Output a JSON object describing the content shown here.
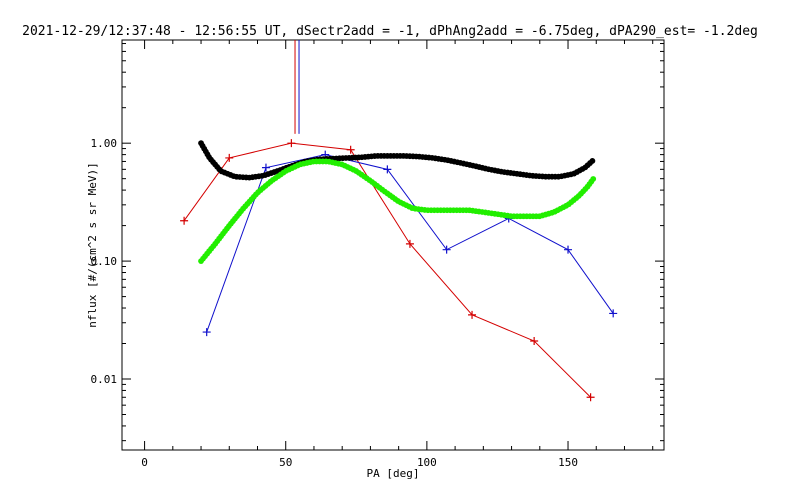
{
  "chart_data": {
    "type": "line",
    "title": "2021-12-29/12:37:48 - 12:56:55 UT, dSectr2add = -1, dPhAng2add = -6.75deg, dPA290_est=  -1.2deg",
    "xlabel": "PA [deg]",
    "ylabel": "nflux [#/(cm^2 s sr MeV)]",
    "xlim": [
      -8,
      184
    ],
    "ylim": [
      0.0025,
      7.5
    ],
    "yscale": "log",
    "xticks": [
      0,
      50,
      100,
      150
    ],
    "xtick_labels": [
      "0",
      "50",
      "100",
      "150"
    ],
    "yticks": [
      0.01,
      0.1,
      1.0
    ],
    "ytick_labels": [
      "0.01",
      "0.10",
      "1.00"
    ],
    "grid": false,
    "series": [
      {
        "style": "line-plus",
        "color": "#d40000",
        "x": [
          14,
          30,
          52,
          73,
          94,
          116,
          138,
          158
        ],
        "y": [
          0.22,
          0.75,
          1.0,
          0.88,
          0.14,
          0.035,
          0.021,
          0.007
        ]
      },
      {
        "style": "line-plus",
        "color": "#1010cc",
        "x": [
          22,
          43,
          64,
          86,
          107,
          129,
          150,
          166
        ],
        "y": [
          0.025,
          0.62,
          0.8,
          0.6,
          0.125,
          0.23,
          0.125,
          0.036
        ]
      },
      {
        "style": "thick-dots",
        "color": "#000000",
        "x": [
          20,
          23,
          27,
          32,
          37,
          42,
          47,
          52,
          57,
          62,
          67,
          72,
          77,
          82,
          87,
          92,
          97,
          102,
          107,
          112,
          117,
          122,
          127,
          132,
          137,
          142,
          147,
          152,
          156,
          159
        ],
        "y": [
          1.0,
          0.75,
          0.58,
          0.52,
          0.51,
          0.53,
          0.58,
          0.64,
          0.7,
          0.73,
          0.74,
          0.75,
          0.76,
          0.78,
          0.78,
          0.78,
          0.77,
          0.75,
          0.72,
          0.68,
          0.64,
          0.6,
          0.57,
          0.55,
          0.53,
          0.52,
          0.52,
          0.55,
          0.62,
          0.72
        ]
      },
      {
        "style": "thick-dots",
        "color": "#22ee00",
        "x": [
          20,
          25,
          30,
          35,
          40,
          45,
          50,
          55,
          60,
          65,
          70,
          75,
          80,
          85,
          90,
          95,
          100,
          105,
          110,
          115,
          120,
          125,
          130,
          135,
          140,
          145,
          150,
          154,
          157,
          159
        ],
        "y": [
          0.1,
          0.14,
          0.2,
          0.28,
          0.38,
          0.48,
          0.58,
          0.66,
          0.7,
          0.7,
          0.66,
          0.58,
          0.48,
          0.39,
          0.32,
          0.28,
          0.27,
          0.27,
          0.27,
          0.27,
          0.26,
          0.25,
          0.24,
          0.24,
          0.24,
          0.26,
          0.3,
          0.36,
          0.43,
          0.5
        ]
      }
    ],
    "marker": {
      "color": "#d40000",
      "color2": "#1010cc",
      "x": 54,
      "y_from": 1.2,
      "y_to": 7.5
    }
  }
}
